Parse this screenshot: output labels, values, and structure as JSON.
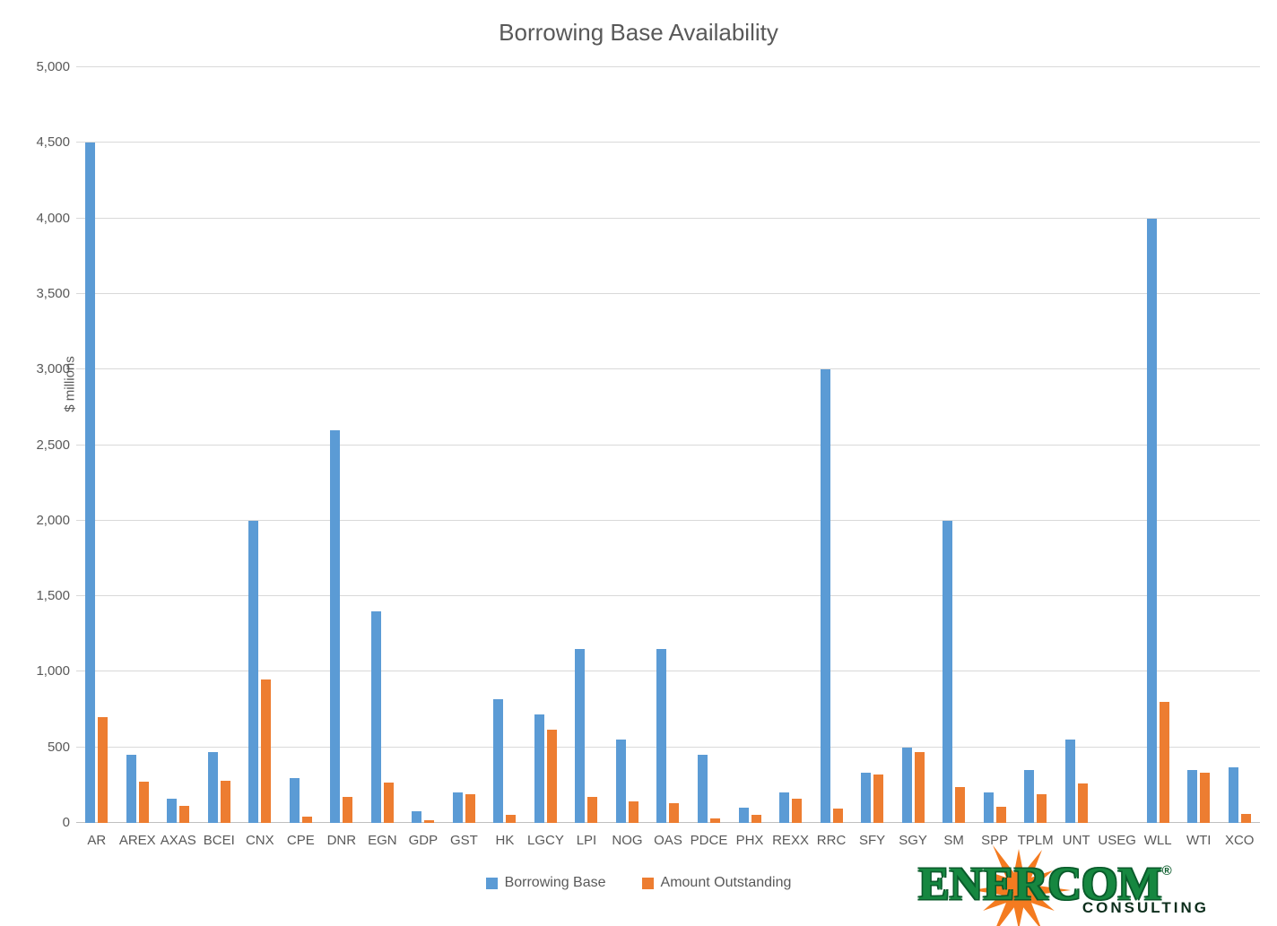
{
  "title": "Borrowing Base Availability",
  "chart_data": {
    "type": "bar",
    "title": "Borrowing Base Availability",
    "xlabel": "",
    "ylabel": "$ millions",
    "ylim": [
      0,
      5000
    ],
    "ytick_step": 500,
    "yticks": [
      "0",
      "500",
      "1,000",
      "1,500",
      "2,000",
      "2,500",
      "3,000",
      "3,500",
      "4,000",
      "4,500",
      "5,000"
    ],
    "grid": true,
    "legend_position": "bottom",
    "categories": [
      "AR",
      "AREX",
      "AXAS",
      "BCEI",
      "CNX",
      "CPE",
      "DNR",
      "EGN",
      "GDP",
      "GST",
      "HK",
      "LGCY",
      "LPI",
      "NOG",
      "OAS",
      "PDCE",
      "PHX",
      "REXX",
      "RRC",
      "SFY",
      "SGY",
      "SM",
      "SPP",
      "TPLM",
      "UNT",
      "USEG",
      "WLL",
      "WTI",
      "XCO"
    ],
    "series": [
      {
        "name": "Borrowing Base",
        "color": "#5B9BD5",
        "values": [
          4500,
          450,
          160,
          470,
          2000,
          295,
          2600,
          1400,
          75,
          200,
          820,
          720,
          1150,
          550,
          1150,
          450,
          100,
          200,
          3000,
          330,
          500,
          2000,
          200,
          350,
          550,
          0,
          4000,
          350,
          370
        ]
      },
      {
        "name": "Amount Outstanding",
        "color": "#ED7D31",
        "values": [
          700,
          270,
          115,
          280,
          950,
          40,
          170,
          265,
          15,
          190,
          55,
          615,
          170,
          145,
          130,
          30,
          55,
          160,
          95,
          320,
          470,
          240,
          105,
          190,
          260,
          0,
          800,
          335,
          60
        ]
      }
    ]
  },
  "logo": {
    "brand": "ENERCOM",
    "registered": "®",
    "sub": "CONSULTING",
    "green": "#168740",
    "dark_green": "#0a5b2b",
    "orange": "#F47B20",
    "sub_color": "#0d2e1c"
  },
  "colors": {
    "title_text": "#595959",
    "axis_text": "#595959",
    "gridline": "#D9D9D9",
    "axis_line": "#BFBFBF",
    "background": "#FFFFFF"
  }
}
